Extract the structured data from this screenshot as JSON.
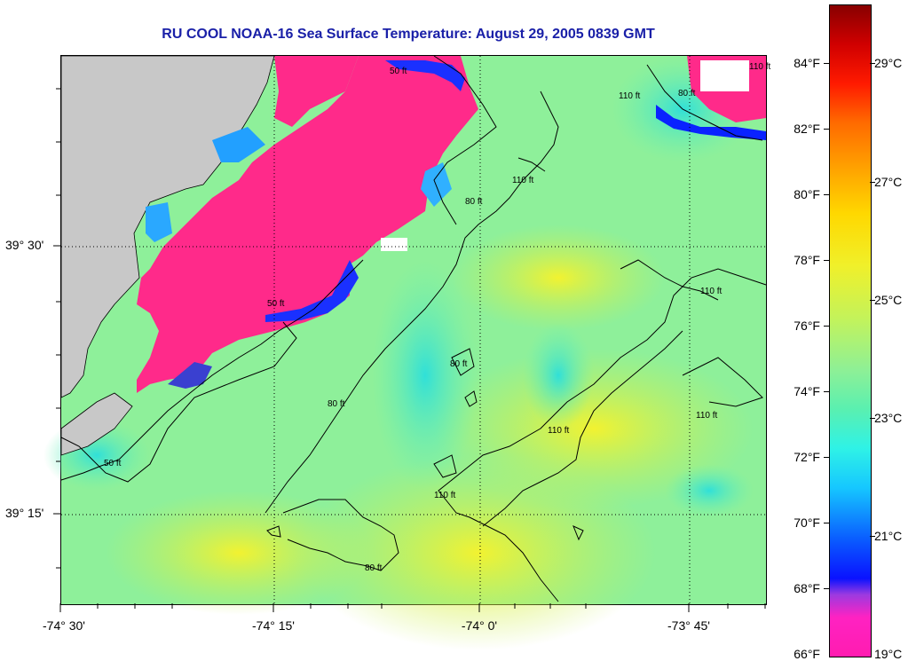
{
  "title": "RU COOL  NOAA-16  Sea Surface Temperature:  August 29, 2005 0839 GMT",
  "map": {
    "latitude_labels": [
      "39° 30'",
      "39° 15'"
    ],
    "longitude_labels": [
      "-74° 30'",
      "-74° 15'",
      "-74° 0'",
      "-73° 45'"
    ],
    "contour_labels": [
      "50 ft",
      "50 ft",
      "80 ft",
      "80 ft",
      "80 ft",
      "110 ft",
      "110 ft",
      "110 ft",
      "110 ft",
      "110 ft",
      "110 ft",
      "80 ft",
      "80 ft",
      "50 ft",
      "110 ft"
    ],
    "land_color": "#c8c8c8",
    "cloud_mask_color": "#ff2a8a",
    "grid": "dotted"
  },
  "colorbar": {
    "fahrenheit_labels": [
      "84°F",
      "82°F",
      "80°F",
      "78°F",
      "76°F",
      "74°F",
      "72°F",
      "70°F",
      "68°F",
      "66°F"
    ],
    "celsius_labels": [
      "29°C",
      "27°C",
      "25°C",
      "23°C",
      "21°C",
      "19°C"
    ],
    "range_c": [
      19,
      30
    ],
    "range_f": [
      66,
      86
    ]
  }
}
